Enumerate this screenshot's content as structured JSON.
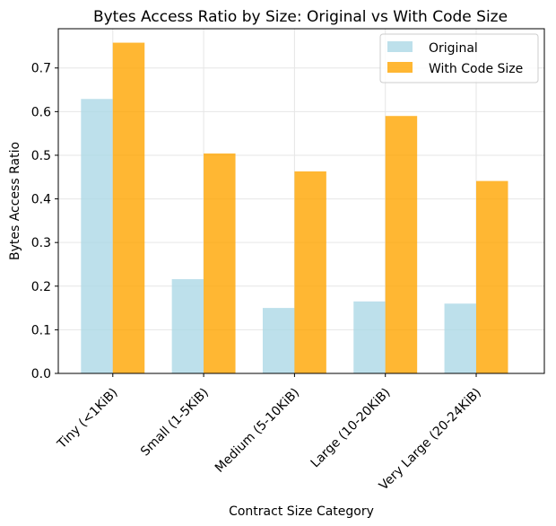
{
  "chart_data": {
    "type": "bar",
    "title": "Bytes Access Ratio by Size: Original vs With Code Size",
    "xlabel": "Contract Size Category",
    "ylabel": "Bytes Access Ratio",
    "categories": [
      "Tiny (<1KiB)",
      "Small (1-5KiB)",
      "Medium (5-10KiB)",
      "Large (10-20KiB)",
      "Very Large (20-24KiB)"
    ],
    "series": [
      {
        "name": "Original",
        "color": "#add8e6",
        "values": [
          0.629,
          0.216,
          0.15,
          0.165,
          0.16
        ]
      },
      {
        "name": "With Code Size",
        "color": "#ffa500",
        "values": [
          0.758,
          0.504,
          0.463,
          0.59,
          0.441
        ]
      }
    ],
    "ylim": [
      0,
      0.79
    ],
    "yticks": [
      0.0,
      0.1,
      0.2,
      0.3,
      0.4,
      0.5,
      0.6,
      0.7
    ],
    "ytick_labels": [
      "0.0",
      "0.1",
      "0.2",
      "0.3",
      "0.4",
      "0.5",
      "0.6",
      "0.7"
    ],
    "grid": true,
    "legend_position": "top-right"
  }
}
